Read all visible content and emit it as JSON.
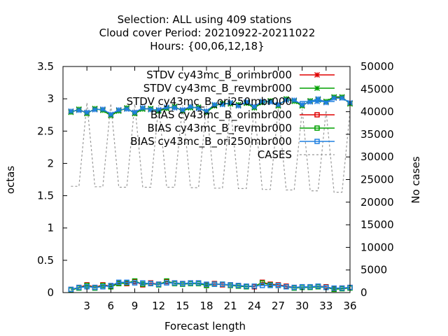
{
  "chart_data": {
    "type": "line",
    "title_lines": [
      "Selection: ALL using   409 stations",
      "Cloud cover   Period: 20210922-20211022",
      "Hours: {00,06,12,18}"
    ],
    "xlabel": "Forecast length",
    "ylabel": "octas",
    "y2label": "No cases",
    "xlim": [
      0,
      36
    ],
    "ylim": [
      0,
      3.5
    ],
    "y2lim": [
      0,
      50000
    ],
    "xticks": [
      3,
      6,
      9,
      12,
      15,
      18,
      21,
      24,
      27,
      30,
      33,
      36
    ],
    "yticks": [
      0,
      0.5,
      1,
      1.5,
      2,
      2.5,
      3,
      3.5
    ],
    "y2ticks": [
      0,
      5000,
      10000,
      15000,
      20000,
      25000,
      30000,
      35000,
      40000,
      45000,
      50000
    ],
    "legend_position": "top-right",
    "x": [
      1,
      2,
      3,
      4,
      5,
      6,
      7,
      8,
      9,
      10,
      11,
      12,
      13,
      14,
      15,
      16,
      17,
      18,
      19,
      20,
      21,
      22,
      23,
      24,
      25,
      26,
      27,
      28,
      29,
      30,
      31,
      32,
      33,
      34,
      35,
      36
    ],
    "series": [
      {
        "name": "STDV cy43mc_B_orimbr000",
        "color": "#e00000",
        "marker": "star",
        "axis": "y1",
        "values": [
          2.8,
          2.83,
          2.78,
          2.84,
          2.83,
          2.75,
          2.82,
          2.85,
          2.78,
          2.85,
          2.84,
          2.82,
          2.86,
          2.87,
          2.82,
          2.87,
          2.86,
          2.8,
          2.9,
          2.92,
          2.93,
          2.9,
          2.94,
          2.87,
          2.95,
          2.96,
          2.9,
          2.99,
          2.97,
          2.9,
          2.96,
          2.99,
          2.95,
          3.02,
          3.02,
          2.93
        ]
      },
      {
        "name": "STDV cy43mc_B_revmbr000",
        "color": "#00a000",
        "marker": "star",
        "axis": "y1",
        "values": [
          2.79,
          2.84,
          2.77,
          2.85,
          2.82,
          2.74,
          2.81,
          2.86,
          2.77,
          2.84,
          2.85,
          2.81,
          2.85,
          2.88,
          2.81,
          2.86,
          2.87,
          2.79,
          2.89,
          2.93,
          2.92,
          2.91,
          2.93,
          2.86,
          2.94,
          2.97,
          2.89,
          3.0,
          2.96,
          2.89,
          2.97,
          2.98,
          2.96,
          3.03,
          3.03,
          2.92
        ]
      },
      {
        "name": "STDV cy43mc_B_ori250mbr000",
        "color": "#2080e0",
        "marker": "star",
        "axis": "y1",
        "values": [
          2.81,
          2.82,
          2.79,
          2.83,
          2.84,
          2.76,
          2.83,
          2.84,
          2.79,
          2.86,
          2.83,
          2.83,
          2.87,
          2.86,
          2.83,
          2.88,
          2.85,
          2.81,
          2.91,
          2.91,
          2.94,
          2.89,
          2.95,
          2.88,
          2.96,
          2.95,
          2.91,
          2.98,
          2.98,
          2.91,
          2.95,
          3.0,
          2.94,
          3.01,
          3.01,
          2.94
        ]
      },
      {
        "name": "BIAS cy43mc_B_orimbr000",
        "color": "#e00000",
        "marker": "square",
        "axis": "y1",
        "values": [
          0.05,
          0.08,
          0.12,
          0.08,
          0.12,
          0.1,
          0.15,
          0.14,
          0.17,
          0.12,
          0.15,
          0.13,
          0.17,
          0.15,
          0.14,
          0.15,
          0.15,
          0.12,
          0.14,
          0.12,
          0.12,
          0.11,
          0.1,
          0.09,
          0.16,
          0.13,
          0.12,
          0.1,
          0.08,
          0.09,
          0.09,
          0.1,
          0.09,
          0.06,
          0.07,
          0.08
        ]
      },
      {
        "name": "BIAS cy43mc_B_revmbr000",
        "color": "#00a000",
        "marker": "square",
        "axis": "y1",
        "values": [
          0.04,
          0.07,
          0.11,
          0.07,
          0.11,
          0.09,
          0.14,
          0.15,
          0.18,
          0.13,
          0.14,
          0.12,
          0.18,
          0.14,
          0.13,
          0.14,
          0.14,
          0.11,
          0.13,
          0.13,
          0.11,
          0.1,
          0.09,
          0.1,
          0.15,
          0.12,
          0.11,
          0.09,
          0.07,
          0.08,
          0.08,
          0.09,
          0.08,
          0.05,
          0.06,
          0.07
        ]
      },
      {
        "name": "BIAS cy43mc_B_ori250mbr000",
        "color": "#2080e0",
        "marker": "square",
        "axis": "y1",
        "values": [
          0.05,
          0.08,
          0.09,
          0.08,
          0.09,
          0.11,
          0.16,
          0.16,
          0.15,
          0.15,
          0.14,
          0.13,
          0.15,
          0.15,
          0.14,
          0.15,
          0.15,
          0.13,
          0.13,
          0.13,
          0.12,
          0.11,
          0.1,
          0.1,
          0.11,
          0.11,
          0.11,
          0.09,
          0.08,
          0.09,
          0.09,
          0.1,
          0.08,
          0.07,
          0.07,
          0.08
        ]
      },
      {
        "name": "CASES",
        "color": "#999999",
        "marker": "none",
        "dashed": true,
        "axis": "y2",
        "values": [
          23500,
          23500,
          42000,
          23400,
          23400,
          41800,
          23300,
          23300,
          41700,
          23300,
          23300,
          41500,
          23300,
          23300,
          41400,
          23200,
          23200,
          41300,
          23100,
          23100,
          41200,
          23000,
          23000,
          41000,
          22800,
          22800,
          40700,
          22700,
          22700,
          40500,
          22500,
          22500,
          40300,
          22200,
          22200,
          40000
        ]
      }
    ]
  }
}
